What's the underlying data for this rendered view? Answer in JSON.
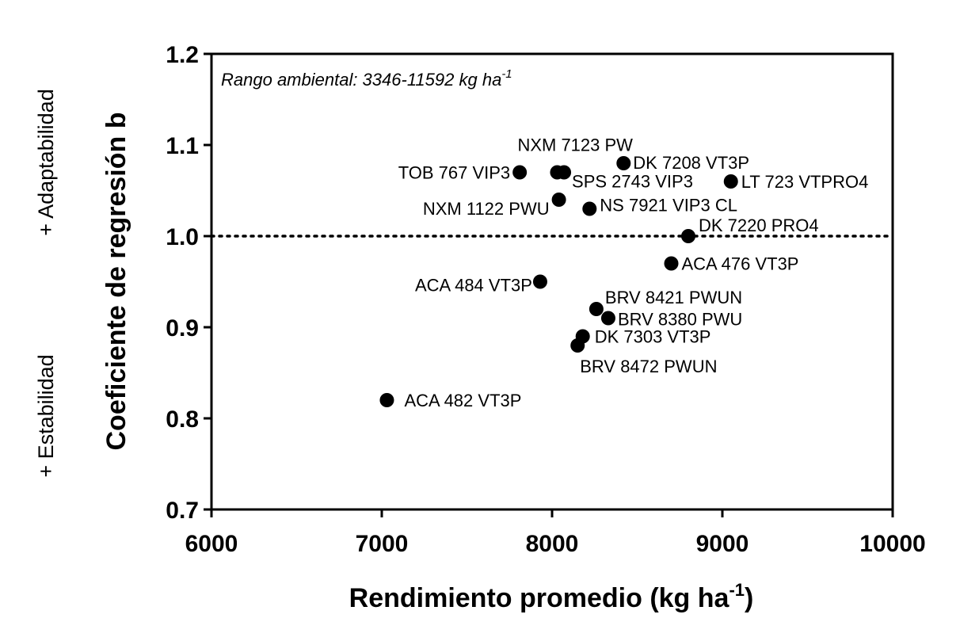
{
  "chart_data": {
    "type": "scatter",
    "title": "",
    "xlabel": "Rendimiento promedio (kg ha",
    "xlabel_sup": "-1",
    "xlabel_close": ")",
    "ylabel": "Coeficiente de regresión b",
    "xlim": [
      6000,
      10000
    ],
    "ylim": [
      0.7,
      1.2
    ],
    "xticks": [
      6000,
      7000,
      8000,
      9000,
      10000
    ],
    "xtick_labels": [
      "6000",
      "7000",
      "8000",
      "9000",
      "10000"
    ],
    "yticks": [
      0.7,
      0.8,
      0.9,
      1.0,
      1.1,
      1.2
    ],
    "ytick_labels": [
      "0.7",
      "0.8",
      "0.9",
      "1.0",
      "1.1",
      "1.2"
    ],
    "reference_line": {
      "y": 1.0,
      "style": "dotted"
    },
    "annotation": {
      "text": "Rango ambiental: 3346-11592 kg ha",
      "sup": "-1"
    },
    "side_labels": {
      "top": "+ Adaptabilidad",
      "bottom": "+ Estabilidad"
    },
    "points": [
      {
        "name": "TOB 767 VIP3",
        "x": 7810,
        "y": 1.07,
        "anchor": "end"
      },
      {
        "name": "NXM 7123 PW",
        "x": 8030,
        "y": 1.07,
        "anchor": "start"
      },
      {
        "name": "SPS 2743 VIP3",
        "x": 8070,
        "y": 1.07,
        "anchor": "start"
      },
      {
        "name": "DK 7208 VT3P",
        "x": 8420,
        "y": 1.08,
        "anchor": "start"
      },
      {
        "name": "LT 723 VTPRO4",
        "x": 9050,
        "y": 1.06,
        "anchor": "start"
      },
      {
        "name": "NXM 1122 PWU",
        "x": 8040,
        "y": 1.04,
        "anchor": "end"
      },
      {
        "name": "NS 7921 VIP3 CL",
        "x": 8220,
        "y": 1.03,
        "anchor": "start"
      },
      {
        "name": "DK 7220 PRO4",
        "x": 8800,
        "y": 1.0,
        "anchor": "start"
      },
      {
        "name": "ACA 476 VT3P",
        "x": 8700,
        "y": 0.97,
        "anchor": "start"
      },
      {
        "name": "ACA 484 VT3P",
        "x": 7930,
        "y": 0.95,
        "anchor": "end"
      },
      {
        "name": "BRV 8421 PWUN",
        "x": 8260,
        "y": 0.92,
        "anchor": "start"
      },
      {
        "name": "BRV 8380 PWU",
        "x": 8330,
        "y": 0.91,
        "anchor": "start"
      },
      {
        "name": "DK 7303 VT3P",
        "x": 8180,
        "y": 0.89,
        "anchor": "start"
      },
      {
        "name": "BRV 8472 PWUN",
        "x": 8150,
        "y": 0.88,
        "anchor": "start"
      },
      {
        "name": "ACA 482 VT3P",
        "x": 7030,
        "y": 0.82,
        "anchor": "start"
      }
    ]
  }
}
